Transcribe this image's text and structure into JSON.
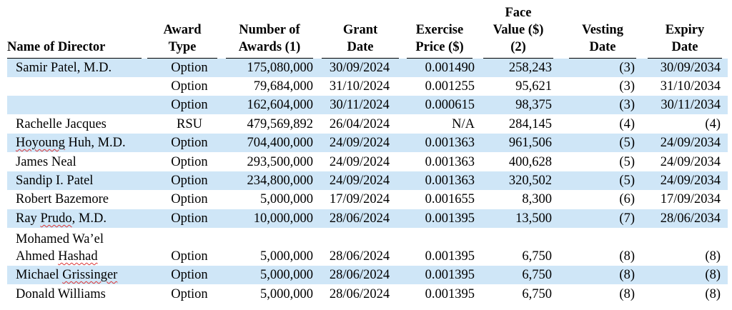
{
  "headers": {
    "name": [
      "Name of Director"
    ],
    "award_type": [
      "Award",
      "Type"
    ],
    "number": [
      "Number of",
      "Awards (1)"
    ],
    "grant": [
      "Grant",
      "Date"
    ],
    "exercise": [
      "Exercise",
      "Price ($)"
    ],
    "face": [
      "Face",
      "Value ($)",
      "(2)"
    ],
    "vesting": [
      "Vesting",
      "Date"
    ],
    "expiry": [
      "Expiry",
      "Date"
    ]
  },
  "rows": [
    {
      "name": "Samir Patel, M.D.",
      "type": "Option",
      "number": "175,080,000",
      "grant": "30/09/2024",
      "exercise": "0.001490",
      "face": "258,243",
      "vesting": "(3)",
      "expiry": "30/09/2034",
      "shaded": true
    },
    {
      "name": "",
      "type": "Option",
      "number": "79,684,000",
      "grant": "31/10/2024",
      "exercise": "0.001255",
      "face": "95,621",
      "vesting": "(3)",
      "expiry": "31/10/2034",
      "shaded": false
    },
    {
      "name": "",
      "type": "Option",
      "number": "162,604,000",
      "grant": "30/11/2024",
      "exercise": "0.000615",
      "face": "98,375",
      "vesting": "(3)",
      "expiry": "30/11/2034",
      "shaded": true
    },
    {
      "name": "Rachelle Jacques",
      "type": "RSU",
      "number": "479,569,892",
      "grant": "26/04/2024",
      "exercise": "N/A",
      "face": "284,145",
      "vesting": "(4)",
      "expiry": "(4)",
      "shaded": false
    },
    {
      "name": "Hoyoung Huh, M.D.",
      "type": "Option",
      "number": "704,400,000",
      "grant": "24/09/2024",
      "exercise": "0.001363",
      "face": "961,506",
      "vesting": "(5)",
      "expiry": "24/09/2034",
      "shaded": true,
      "squiggle": "Hoyoung"
    },
    {
      "name": "James Neal",
      "type": "Option",
      "number": "293,500,000",
      "grant": "24/09/2024",
      "exercise": "0.001363",
      "face": "400,628",
      "vesting": "(5)",
      "expiry": "24/09/2034",
      "shaded": false
    },
    {
      "name": "Sandip I. Patel",
      "type": "Option",
      "number": "234,800,000",
      "grant": "24/09/2024",
      "exercise": "0.001363",
      "face": "320,502",
      "vesting": "(5)",
      "expiry": "24/09/2034",
      "shaded": true
    },
    {
      "name": "Robert Bazemore",
      "type": "Option",
      "number": "5,000,000",
      "grant": "17/09/2024",
      "exercise": "0.001655",
      "face": "8,300",
      "vesting": "(6)",
      "expiry": "17/09/2034",
      "shaded": false
    },
    {
      "name": "Ray Prudo, M.D.",
      "type": "Option",
      "number": "10,000,000",
      "grant": "28/06/2024",
      "exercise": "0.001395",
      "face": "13,500",
      "vesting": "(7)",
      "expiry": "28/06/2034",
      "shaded": true,
      "squiggle": "Prudo"
    },
    {
      "name": "Mohamed Wa’el",
      "name2": "Ahmed Hashad",
      "type": "Option",
      "number": "5,000,000",
      "grant": "28/06/2024",
      "exercise": "0.001395",
      "face": "6,750",
      "vesting": "(8)",
      "expiry": "(8)",
      "shaded": false,
      "squiggle": "Hashad"
    },
    {
      "name": "Michael Grissinger",
      "type": "Option",
      "number": "5,000,000",
      "grant": "28/06/2024",
      "exercise": "0.001395",
      "face": "6,750",
      "vesting": "(8)",
      "expiry": "(8)",
      "shaded": true,
      "squiggle": "Grissinger"
    },
    {
      "name": "Donald Williams",
      "type": "Option",
      "number": "5,000,000",
      "grant": "28/06/2024",
      "exercise": "0.001395",
      "face": "6,750",
      "vesting": "(8)",
      "expiry": "(8)",
      "shaded": false
    }
  ],
  "colors": {
    "row_shade": "#cfe6f7",
    "spellcheck": "#d33333"
  }
}
